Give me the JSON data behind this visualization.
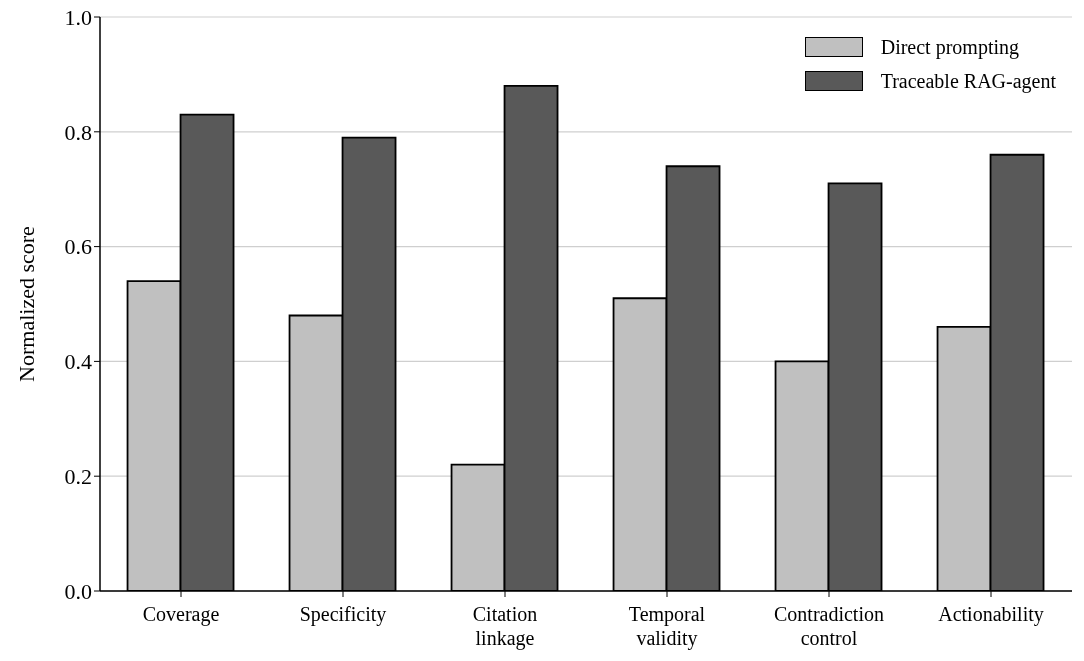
{
  "chart_data": {
    "type": "bar",
    "ylabel": "Normalized score",
    "categories": [
      "Coverage",
      "Specificity",
      "Citation linkage",
      "Temporal validity",
      "Contradiction control",
      "Actionability"
    ],
    "series": [
      {
        "name": "Direct prompting",
        "color": "#c0c0c0",
        "values": [
          0.54,
          0.48,
          0.22,
          0.51,
          0.4,
          0.46
        ]
      },
      {
        "name": "Traceable RAG-agent",
        "color": "#595959",
        "values": [
          0.83,
          0.79,
          0.88,
          0.74,
          0.71,
          0.76
        ]
      }
    ],
    "ylim": [
      0,
      1.0
    ],
    "yticks": [
      {
        "value": 0,
        "label": "0.0"
      },
      {
        "value": 0.2,
        "label": "0.2"
      },
      {
        "value": 0.4,
        "label": "0.4"
      },
      {
        "value": 0.6,
        "label": "0.6"
      },
      {
        "value": 0.8,
        "label": "0.8"
      },
      {
        "value": 1.0,
        "label": "1.0"
      }
    ],
    "grid": "y",
    "legend": "top right"
  }
}
